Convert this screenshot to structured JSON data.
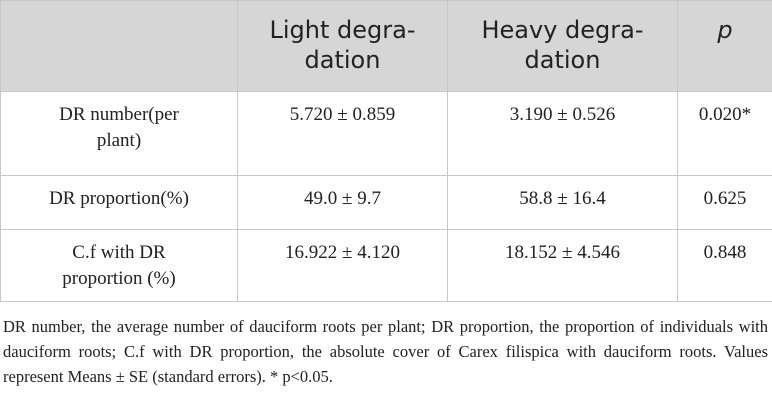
{
  "table": {
    "header": [
      [
        "Light degra-",
        "dation"
      ],
      [
        "Heavy degra-",
        "dation"
      ],
      [
        "p"
      ]
    ],
    "rows": [
      [
        "DR number(per plant)",
        "5.720 ± 0.859",
        "3.190 ± 0.526",
        "0.020*"
      ],
      [
        "DR proportion(%)",
        "49.0 ± 9.7",
        "58.8 ± 16.4",
        "0.625"
      ],
      [
        "C.f with DR proportion (%)",
        "16.922 ± 4.120",
        "18.152 ± 4.546",
        "0.848"
      ]
    ]
  },
  "footnote": "DR number, the average number of dauciform roots per plant; DR proportion, the proportion of individuals with dauciform roots; C.f with DR proportion, the absolute cover of Carex filispica with dauciform roots. Values represent Means ± SE (standard errors). * p<0.05."
}
